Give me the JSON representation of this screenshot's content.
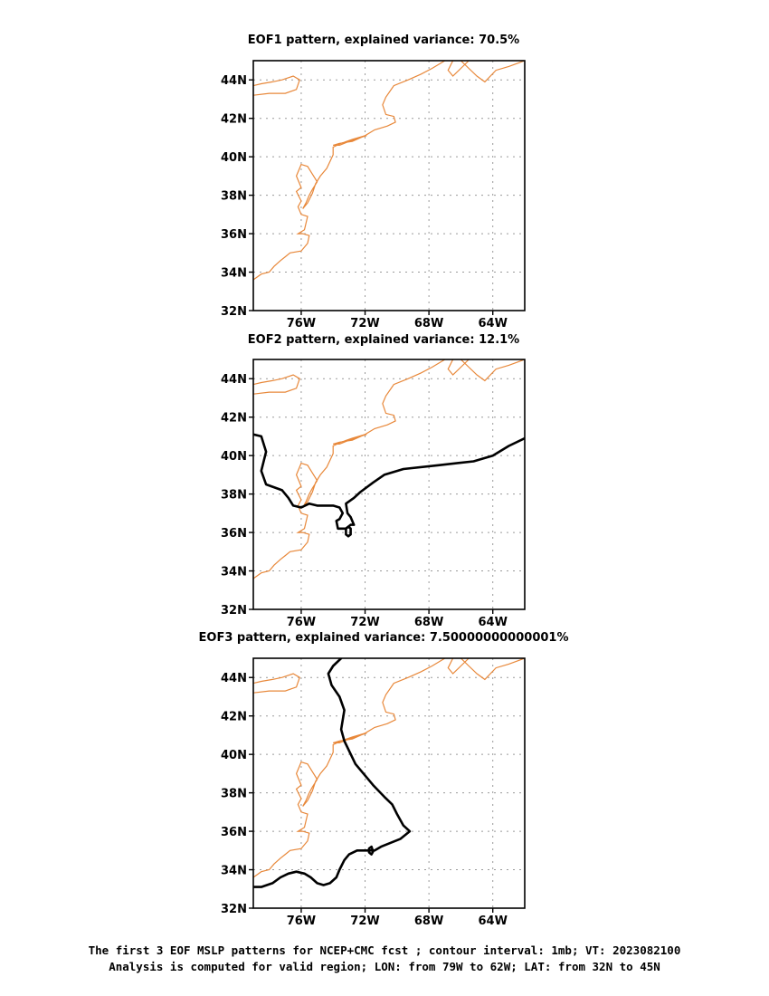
{
  "panels": [
    {
      "title": "EOF1 pattern, explained variance: 70.5%",
      "contours": []
    },
    {
      "title": "EOF2 pattern, explained variance: 12.1%",
      "contours": [
        [
          [
            -79.0,
            41.1
          ],
          [
            -78.5,
            41.0
          ],
          [
            -78.2,
            40.2
          ],
          [
            -78.5,
            39.2
          ],
          [
            -78.2,
            38.5
          ],
          [
            -77.2,
            38.2
          ],
          [
            -76.8,
            37.8
          ],
          [
            -76.5,
            37.4
          ],
          [
            -76.0,
            37.3
          ],
          [
            -75.5,
            37.5
          ],
          [
            -75.0,
            37.4
          ],
          [
            -74.5,
            37.4
          ],
          [
            -74.0,
            37.4
          ],
          [
            -73.6,
            37.3
          ],
          [
            -73.4,
            37.0
          ],
          [
            -73.6,
            36.7
          ],
          [
            -73.8,
            36.6
          ],
          [
            -73.7,
            36.2
          ],
          [
            -73.2,
            36.2
          ],
          [
            -72.9,
            36.4
          ],
          [
            -72.7,
            36.4
          ],
          [
            -72.9,
            36.8
          ],
          [
            -73.1,
            37.0
          ],
          [
            -73.2,
            37.5
          ],
          [
            -72.7,
            37.8
          ],
          [
            -72.3,
            38.1
          ],
          [
            -71.5,
            38.6
          ],
          [
            -70.8,
            39.0
          ],
          [
            -69.6,
            39.3
          ],
          [
            -67.4,
            39.5
          ],
          [
            -65.2,
            39.7
          ],
          [
            -64.0,
            40.0
          ],
          [
            -63.0,
            40.5
          ],
          [
            -62.0,
            40.9
          ]
        ],
        [
          [
            -73.05,
            35.8
          ],
          [
            -72.9,
            35.9
          ],
          [
            -72.9,
            36.2
          ],
          [
            -73.05,
            36.3
          ],
          [
            -73.2,
            36.2
          ],
          [
            -73.2,
            35.9
          ],
          [
            -73.05,
            35.8
          ]
        ]
      ]
    },
    {
      "title": "EOF3 pattern, explained variance: 7.50000000000001%",
      "contours": [
        [
          [
            -73.5,
            45.0
          ],
          [
            -74.0,
            44.6
          ],
          [
            -74.3,
            44.2
          ],
          [
            -74.1,
            43.6
          ],
          [
            -73.6,
            43.0
          ],
          [
            -73.3,
            42.3
          ],
          [
            -73.5,
            41.3
          ],
          [
            -73.3,
            40.7
          ],
          [
            -72.6,
            39.5
          ],
          [
            -71.5,
            38.4
          ],
          [
            -70.8,
            37.8
          ],
          [
            -70.3,
            37.4
          ],
          [
            -70.0,
            36.9
          ],
          [
            -69.6,
            36.3
          ],
          [
            -69.2,
            36.0
          ],
          [
            -69.8,
            35.6
          ],
          [
            -70.4,
            35.4
          ],
          [
            -71.0,
            35.2
          ],
          [
            -71.4,
            35.0
          ],
          [
            -71.9,
            35.0
          ],
          [
            -72.5,
            35.0
          ],
          [
            -73.0,
            34.8
          ],
          [
            -73.3,
            34.5
          ],
          [
            -73.6,
            34.0
          ],
          [
            -73.8,
            33.6
          ],
          [
            -74.2,
            33.3
          ],
          [
            -74.6,
            33.2
          ],
          [
            -75.0,
            33.3
          ],
          [
            -75.4,
            33.6
          ],
          [
            -75.8,
            33.8
          ],
          [
            -76.3,
            33.9
          ],
          [
            -76.8,
            33.8
          ],
          [
            -77.3,
            33.6
          ],
          [
            -77.8,
            33.3
          ],
          [
            -78.5,
            33.1
          ],
          [
            -79.0,
            33.1
          ]
        ],
        [
          [
            -71.6,
            34.8
          ],
          [
            -71.5,
            34.95
          ],
          [
            -71.6,
            35.2
          ],
          [
            -71.75,
            35.1
          ],
          [
            -71.75,
            34.9
          ],
          [
            -71.6,
            34.8
          ]
        ]
      ]
    }
  ],
  "map": {
    "lon_range": [
      -79,
      -62
    ],
    "lat_range": [
      32,
      45
    ],
    "lon_ticks": [
      -76,
      -72,
      -68,
      -64
    ],
    "lon_labels": [
      "76W",
      "72W",
      "68W",
      "64W"
    ],
    "lat_ticks": [
      32,
      34,
      36,
      38,
      40,
      42,
      44
    ],
    "lat_labels": [
      "32N",
      "34N",
      "36N",
      "38N",
      "40N",
      "42N",
      "44N"
    ],
    "grid": true,
    "coast_color": "#e8883a",
    "contour_color": "#000000"
  },
  "coastlines": [
    [
      [
        -79.0,
        33.6
      ],
      [
        -78.5,
        33.9
      ],
      [
        -78.0,
        34.0
      ],
      [
        -77.7,
        34.3
      ],
      [
        -77.3,
        34.6
      ],
      [
        -77.0,
        34.8
      ],
      [
        -76.7,
        35.0
      ],
      [
        -76.0,
        35.1
      ],
      [
        -75.6,
        35.5
      ],
      [
        -75.5,
        35.9
      ],
      [
        -75.9,
        36.0
      ],
      [
        -76.2,
        36.0
      ],
      [
        -75.8,
        36.2
      ],
      [
        -75.6,
        36.9
      ],
      [
        -76.0,
        37.0
      ],
      [
        -76.2,
        37.4
      ],
      [
        -76.0,
        37.7
      ],
      [
        -76.3,
        38.2
      ],
      [
        -76.0,
        38.4
      ],
      [
        -76.3,
        39.0
      ],
      [
        -76.0,
        39.6
      ],
      [
        -75.6,
        39.5
      ],
      [
        -75.3,
        39.1
      ],
      [
        -75.0,
        38.7
      ],
      [
        -75.3,
        38.3
      ],
      [
        -75.5,
        38.0
      ],
      [
        -75.7,
        37.6
      ],
      [
        -75.9,
        37.3
      ],
      [
        -75.6,
        37.6
      ],
      [
        -75.3,
        38.1
      ],
      [
        -75.1,
        38.6
      ],
      [
        -74.8,
        39.0
      ],
      [
        -74.4,
        39.4
      ],
      [
        -74.0,
        40.1
      ],
      [
        -74.0,
        40.5
      ],
      [
        -73.5,
        40.7
      ],
      [
        -72.8,
        40.9
      ],
      [
        -72.0,
        41.1
      ],
      [
        -71.4,
        41.4
      ],
      [
        -71.0,
        41.5
      ],
      [
        -70.6,
        41.6
      ],
      [
        -70.1,
        41.8
      ],
      [
        -70.2,
        42.1
      ],
      [
        -70.7,
        42.2
      ],
      [
        -70.9,
        42.7
      ],
      [
        -70.7,
        43.1
      ],
      [
        -70.2,
        43.7
      ],
      [
        -69.3,
        44.0
      ],
      [
        -68.5,
        44.3
      ],
      [
        -67.8,
        44.6
      ],
      [
        -67.0,
        45.0
      ]
    ],
    [
      [
        -71.9,
        41.1
      ],
      [
        -72.3,
        41.0
      ],
      [
        -73.0,
        40.8
      ],
      [
        -73.6,
        40.6
      ],
      [
        -74.0,
        40.6
      ],
      [
        -73.6,
        40.7
      ],
      [
        -72.8,
        40.8
      ],
      [
        -72.0,
        41.1
      ]
    ],
    [
      [
        -79.0,
        43.2
      ],
      [
        -78.0,
        43.3
      ],
      [
        -77.0,
        43.3
      ],
      [
        -76.3,
        43.5
      ],
      [
        -76.1,
        44.0
      ],
      [
        -76.5,
        44.2
      ],
      [
        -77.2,
        44.0
      ],
      [
        -77.8,
        43.9
      ],
      [
        -78.5,
        43.8
      ],
      [
        -79.0,
        43.7
      ]
    ],
    [
      [
        -66.0,
        45.0
      ],
      [
        -65.5,
        44.6
      ],
      [
        -65.0,
        44.2
      ],
      [
        -64.5,
        43.9
      ],
      [
        -63.8,
        44.5
      ],
      [
        -63.0,
        44.7
      ],
      [
        -62.0,
        45.0
      ]
    ],
    [
      [
        -66.5,
        45.0
      ],
      [
        -66.8,
        44.5
      ],
      [
        -66.5,
        44.2
      ],
      [
        -66.0,
        44.6
      ],
      [
        -65.5,
        45.0
      ]
    ]
  ],
  "caption": {
    "line1": "The first 3 EOF MSLP patterns for NCEP+CMC fcst ; contour interval: 1mb; VT: 2023082100",
    "line2": "Analysis is computed for valid region; LON: from 79W to 62W; LAT: from 32N to 45N"
  }
}
